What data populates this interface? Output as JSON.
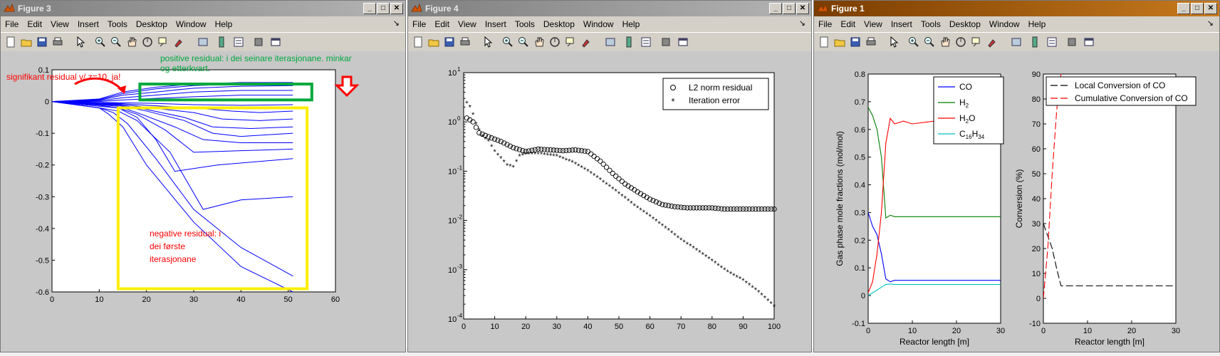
{
  "menu": [
    "File",
    "Edit",
    "View",
    "Insert",
    "Tools",
    "Desktop",
    "Window",
    "Help"
  ],
  "windows": {
    "fig3": {
      "title": "Figure 3"
    },
    "fig4": {
      "title": "Figure 4"
    },
    "fig1": {
      "title": "Figure 1"
    }
  },
  "colors": {
    "accent_red": "#ff0000",
    "green_box": "#00a83c",
    "yellow_box": "#ffee00",
    "line_blue": "#0000ff"
  },
  "annotations": {
    "significant": "signifikant residual v/ z=10, ja!",
    "positive_l1": "positive residual: i dei seinare iterasjonane. minkar",
    "positive_l2": "og etterkvart.",
    "negative_l1": "negative residual: i",
    "negative_l2": "dei første",
    "negative_l3": "iterasjonane"
  },
  "chart_data": [
    {
      "id": "figure3",
      "type": "line",
      "xlim": [
        0,
        60
      ],
      "ylim": [
        -0.6,
        0.1
      ],
      "xticks": [
        "0",
        "10",
        "20",
        "30",
        "40",
        "50",
        "60"
      ],
      "yticks": [
        "0.1",
        "0",
        "-0.1",
        "-0.2",
        "-0.3",
        "-0.4",
        "-0.5",
        "-0.6"
      ],
      "series": [
        {
          "x": [
            0,
            10,
            12,
            15,
            20,
            30,
            40,
            51
          ],
          "y": [
            0,
            -0.02,
            -0.04,
            -0.08,
            -0.2,
            -0.38,
            -0.52,
            -0.6
          ]
        },
        {
          "x": [
            0,
            10,
            13,
            16,
            22,
            30,
            40,
            51
          ],
          "y": [
            0,
            -0.02,
            -0.035,
            -0.07,
            -0.18,
            -0.34,
            -0.46,
            -0.55
          ]
        },
        {
          "x": [
            0,
            10,
            14,
            18,
            25,
            32,
            40,
            51
          ],
          "y": [
            0,
            -0.02,
            -0.03,
            -0.06,
            -0.16,
            -0.34,
            -0.31,
            -0.3
          ]
        },
        {
          "x": [
            0,
            10,
            14,
            18,
            22,
            26,
            35,
            51
          ],
          "y": [
            0,
            -0.015,
            -0.02,
            -0.05,
            -0.12,
            -0.22,
            -0.2,
            -0.18
          ]
        },
        {
          "x": [
            0,
            10,
            14,
            18,
            24,
            30,
            40,
            51
          ],
          "y": [
            0,
            -0.012,
            -0.02,
            -0.04,
            -0.09,
            -0.16,
            -0.155,
            -0.15
          ]
        },
        {
          "x": [
            0,
            10,
            14,
            18,
            26,
            32,
            40,
            51
          ],
          "y": [
            0,
            -0.01,
            -0.015,
            -0.035,
            -0.08,
            -0.12,
            -0.13,
            -0.13
          ]
        },
        {
          "x": [
            0,
            10,
            14,
            20,
            28,
            34,
            40,
            51
          ],
          "y": [
            0,
            -0.01,
            -0.012,
            -0.03,
            -0.06,
            -0.1,
            -0.11,
            -0.1
          ]
        },
        {
          "x": [
            0,
            10,
            14,
            20,
            28,
            34,
            42,
            51
          ],
          "y": [
            0,
            -0.008,
            -0.01,
            -0.025,
            -0.05,
            -0.08,
            -0.085,
            -0.08
          ]
        },
        {
          "x": [
            0,
            10,
            14,
            20,
            30,
            36,
            44,
            51
          ],
          "y": [
            0,
            -0.006,
            -0.008,
            -0.018,
            -0.035,
            -0.055,
            -0.06,
            -0.055
          ]
        },
        {
          "x": [
            0,
            10,
            14,
            20,
            30,
            38,
            44,
            51
          ],
          "y": [
            0,
            -0.004,
            -0.006,
            -0.012,
            -0.02,
            -0.03,
            -0.035,
            -0.03
          ]
        },
        {
          "x": [
            0,
            10,
            15,
            22,
            30,
            40,
            51
          ],
          "y": [
            0,
            -0.003,
            -0.004,
            -0.006,
            -0.01,
            -0.012,
            -0.01
          ]
        },
        {
          "x": [
            0,
            10,
            15,
            22,
            30,
            40,
            51
          ],
          "y": [
            0,
            0,
            0.005,
            0.01,
            0.015,
            0.02,
            0.02
          ]
        },
        {
          "x": [
            0,
            10,
            15,
            22,
            30,
            40,
            51
          ],
          "y": [
            0,
            0.002,
            0.012,
            0.02,
            0.03,
            0.035,
            0.035
          ]
        },
        {
          "x": [
            0,
            10,
            15,
            22,
            30,
            40,
            51
          ],
          "y": [
            0,
            0.004,
            0.02,
            0.03,
            0.042,
            0.048,
            0.05
          ]
        },
        {
          "x": [
            0,
            10,
            15,
            22,
            30,
            40,
            51
          ],
          "y": [
            0,
            0.006,
            0.025,
            0.04,
            0.05,
            0.055,
            0.055
          ]
        },
        {
          "x": [
            0,
            10,
            15,
            22,
            30,
            40,
            51
          ],
          "y": [
            0,
            0.008,
            0.03,
            0.045,
            0.055,
            0.06,
            0.06
          ]
        }
      ]
    },
    {
      "id": "figure4",
      "type": "scatter",
      "yscale": "log",
      "xlim": [
        0,
        100
      ],
      "ylim": [
        0.0001,
        10
      ],
      "xticks": [
        "0",
        "10",
        "20",
        "30",
        "40",
        "50",
        "60",
        "70",
        "80",
        "90",
        "100"
      ],
      "yticks_exp": [
        "1",
        "0",
        "-1",
        "-2",
        "-3",
        "-4"
      ],
      "legend_location": "top-right",
      "series": [
        {
          "name": "L2 norm residual",
          "marker": "o",
          "x": [
            1,
            3,
            5,
            8,
            12,
            16,
            20,
            24,
            28,
            32,
            36,
            40,
            44,
            48,
            52,
            56,
            60,
            64,
            68,
            72,
            76,
            80,
            84,
            88,
            92,
            96,
            100
          ],
          "y": [
            1.2,
            1.0,
            0.6,
            0.5,
            0.4,
            0.3,
            0.25,
            0.28,
            0.27,
            0.26,
            0.27,
            0.25,
            0.16,
            0.09,
            0.055,
            0.038,
            0.027,
            0.021,
            0.019,
            0.018,
            0.018,
            0.018,
            0.017,
            0.017,
            0.017,
            0.017,
            0.017
          ]
        },
        {
          "name": "Iteration error",
          "marker": "*",
          "x": [
            1,
            2,
            3,
            4,
            6,
            8,
            10,
            12,
            14,
            16,
            18,
            20,
            25,
            30,
            35,
            40,
            45,
            50,
            55,
            60,
            65,
            70,
            75,
            80,
            85,
            90,
            95,
            100
          ],
          "y": [
            2.4,
            2.0,
            1.4,
            0.9,
            0.5,
            0.4,
            0.25,
            0.18,
            0.13,
            0.12,
            0.2,
            0.22,
            0.22,
            0.2,
            0.15,
            0.1,
            0.06,
            0.035,
            0.02,
            0.012,
            0.007,
            0.004,
            0.0025,
            0.0015,
            0.0009,
            0.0006,
            0.00035,
            0.00018
          ]
        }
      ]
    },
    {
      "id": "figure1_left",
      "type": "line",
      "xlim": [
        0,
        30
      ],
      "ylim": [
        -0.1,
        0.8
      ],
      "xticks": [
        "0",
        "10",
        "20",
        "30"
      ],
      "yticks": [
        "0.8",
        "0.7",
        "0.6",
        "0.5",
        "0.4",
        "0.3",
        "0.2",
        "0.1",
        "0",
        "-0.1"
      ],
      "xlabel": "Reactor length [m]",
      "ylabel": "Gas phase mole fractions (mol/mol)",
      "legend_location": "top-right",
      "series": [
        {
          "name": "CO",
          "color": "#0000ff",
          "x": [
            0,
            1,
            2,
            3,
            4,
            5,
            6,
            8,
            10,
            15,
            20,
            25,
            30
          ],
          "y": [
            0.3,
            0.25,
            0.22,
            0.15,
            0.06,
            0.05,
            0.055,
            0.055,
            0.055,
            0.055,
            0.055,
            0.055,
            0.055
          ]
        },
        {
          "name": "H2",
          "color": "#008000",
          "x": [
            0,
            1,
            2,
            3,
            4,
            5,
            6,
            8,
            10,
            15,
            20,
            25,
            30
          ],
          "y": [
            0.68,
            0.65,
            0.6,
            0.5,
            0.28,
            0.29,
            0.285,
            0.285,
            0.285,
            0.285,
            0.285,
            0.285,
            0.285
          ]
        },
        {
          "name": "H2O",
          "color": "#ff0000",
          "x": [
            0,
            1,
            2,
            3,
            4,
            5,
            6,
            8,
            10,
            15,
            20,
            25,
            30
          ],
          "y": [
            0.01,
            0.05,
            0.15,
            0.3,
            0.55,
            0.64,
            0.62,
            0.63,
            0.62,
            0.63,
            0.625,
            0.625,
            0.625
          ]
        },
        {
          "name": "C16H34",
          "color": "#00bfbf",
          "x": [
            0,
            1,
            2,
            3,
            4,
            5,
            6,
            8,
            10,
            15,
            20,
            25,
            30
          ],
          "y": [
            0.0,
            0.01,
            0.02,
            0.03,
            0.04,
            0.042,
            0.04,
            0.04,
            0.04,
            0.04,
            0.04,
            0.04,
            0.04
          ]
        }
      ]
    },
    {
      "id": "figure1_right",
      "type": "line",
      "xlim": [
        0,
        30
      ],
      "ylim": [
        -10,
        90
      ],
      "xticks": [
        "0",
        "10",
        "20",
        "30"
      ],
      "yticks": [
        "90",
        "80",
        "70",
        "60",
        "50",
        "40",
        "30",
        "20",
        "10",
        "0",
        "-10"
      ],
      "xlabel": "Reactor length [m]",
      "ylabel": "Conversion (%)",
      "legend_location": "top-left",
      "series": [
        {
          "name": "Local Conversion of CO",
          "color": "#000000",
          "dash": "long",
          "x": [
            0,
            1,
            2,
            3,
            4,
            5,
            10,
            20,
            30
          ],
          "y": [
            30,
            25,
            20,
            12,
            5,
            5,
            5,
            5,
            5
          ]
        },
        {
          "name": "Cumulative Conversion of CO",
          "color": "#ff0000",
          "dash": "long",
          "x": [
            0,
            1,
            2,
            3,
            3.5,
            4
          ],
          "y": [
            0,
            20,
            50,
            75,
            85,
            90
          ]
        }
      ]
    }
  ]
}
